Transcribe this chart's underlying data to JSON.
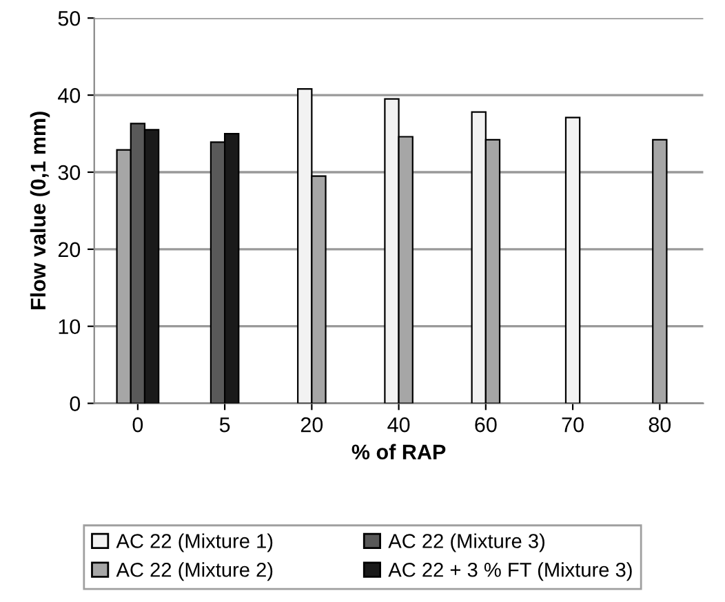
{
  "chart_data": {
    "type": "bar",
    "xlabel": "% of RAP",
    "ylabel": "Flow value (0,1 mm)",
    "categories": [
      "0",
      "5",
      "20",
      "40",
      "60",
      "70",
      "80"
    ],
    "series": [
      {
        "name": "AC 22 (Mixture 1)",
        "color": "#f2f2f2",
        "values": [
          null,
          null,
          40.8,
          39.5,
          37.8,
          37.1,
          null
        ]
      },
      {
        "name": "AC 22 (Mixture 2)",
        "color": "#a6a6a6",
        "values": [
          32.9,
          null,
          29.5,
          34.6,
          34.2,
          null,
          34.2
        ]
      },
      {
        "name": "AC 22 (Mixture 3)",
        "color": "#595959",
        "values": [
          36.3,
          33.9,
          null,
          null,
          null,
          null,
          null
        ]
      },
      {
        "name": "AC 22 + 3 % FT (Mixture 3)",
        "color": "#1a1a1a",
        "values": [
          35.5,
          35.0,
          null,
          null,
          null,
          null,
          null
        ]
      }
    ],
    "ylim": [
      0,
      50
    ],
    "yticks": [
      0,
      10,
      20,
      30,
      40,
      50
    ],
    "grid": "y",
    "legend": "bottom"
  }
}
